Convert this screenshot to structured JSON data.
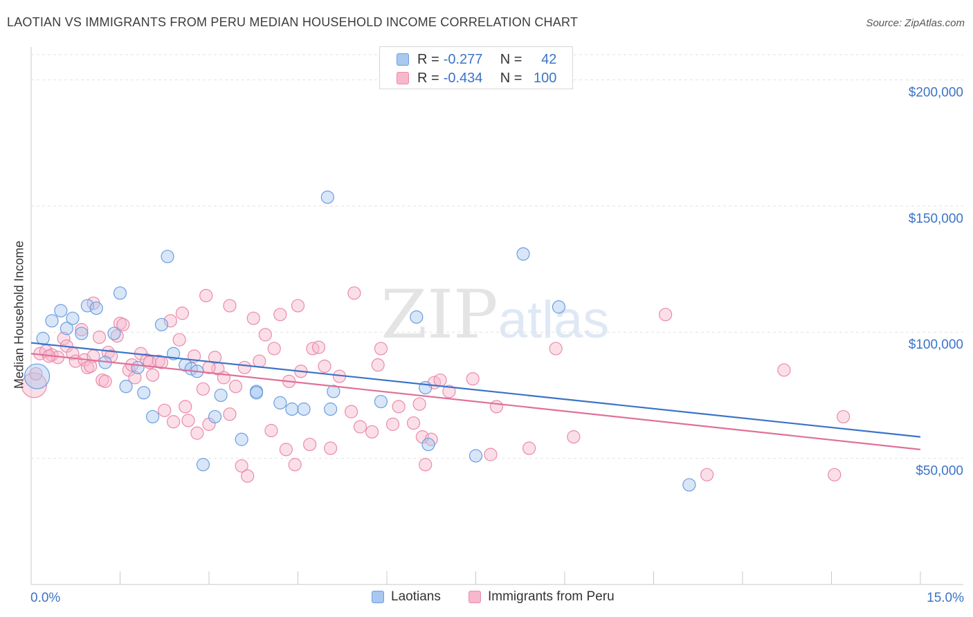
{
  "title": "LAOTIAN VS IMMIGRANTS FROM PERU MEDIAN HOUSEHOLD INCOME CORRELATION CHART",
  "source": "Source: ZipAtlas.com",
  "watermark": {
    "zip": "ZIP",
    "atlas": "atlas"
  },
  "legend": {
    "rows": [
      {
        "r_label": "R =",
        "r_value": "-0.277",
        "n_label": "N =",
        "n_value": "42",
        "color": "#a8c8f0",
        "stroke": "#6a9ee0"
      },
      {
        "r_label": "R =",
        "r_value": "-0.434",
        "n_label": "N =",
        "n_value": "100",
        "color": "#f7b8cc",
        "stroke": "#ea8aa8"
      }
    ]
  },
  "bottom_legend": [
    {
      "label": "Laotians",
      "color": "#a8c8f0",
      "stroke": "#6a9ee0"
    },
    {
      "label": "Immigrants from Peru",
      "color": "#f7b8cc",
      "stroke": "#ea8aa8"
    }
  ],
  "chart_data": {
    "type": "scatter",
    "title": "LAOTIAN VS IMMIGRANTS FROM PERU MEDIAN HOUSEHOLD INCOME CORRELATION CHART",
    "xlabel": "",
    "ylabel": "Median Household Income",
    "xlim": [
      0,
      15
    ],
    "ylim": [
      0,
      210000
    ],
    "x_tick_labels": [
      "0.0%",
      "15.0%"
    ],
    "y_ticks": [
      50000,
      100000,
      150000,
      200000
    ],
    "y_tick_labels": [
      "$50,000",
      "$100,000",
      "$150,000",
      "$200,000"
    ],
    "grid": true,
    "legend_position": "top-center",
    "series": [
      {
        "name": "Laotians",
        "color": "#6a9ee0",
        "fill": "#a8c8f0",
        "line_color": "#3b73c7",
        "trend": {
          "x": [
            0,
            15
          ],
          "y": [
            95800,
            58500
          ]
        },
        "points": [
          [
            0.1,
            82500
          ],
          [
            0.2,
            97500
          ],
          [
            0.35,
            104500
          ],
          [
            0.5,
            108500
          ],
          [
            0.6,
            101500
          ],
          [
            0.7,
            105500
          ],
          [
            0.85,
            99500
          ],
          [
            0.95,
            110500
          ],
          [
            1.1,
            109500
          ],
          [
            1.25,
            88000
          ],
          [
            1.4,
            99500
          ],
          [
            1.5,
            115500
          ],
          [
            1.6,
            78500
          ],
          [
            1.8,
            86000
          ],
          [
            1.9,
            76000
          ],
          [
            2.05,
            66500
          ],
          [
            2.2,
            103000
          ],
          [
            2.3,
            130000
          ],
          [
            2.4,
            91500
          ],
          [
            2.6,
            87000
          ],
          [
            2.7,
            85500
          ],
          [
            2.8,
            84500
          ],
          [
            2.9,
            47500
          ],
          [
            3.1,
            66500
          ],
          [
            3.2,
            75000
          ],
          [
            3.55,
            57500
          ],
          [
            3.8,
            76500
          ],
          [
            3.8,
            76000
          ],
          [
            4.2,
            72000
          ],
          [
            4.4,
            69500
          ],
          [
            4.6,
            69500
          ],
          [
            5.0,
            153500
          ],
          [
            5.05,
            69500
          ],
          [
            5.1,
            76500
          ],
          [
            5.9,
            72500
          ],
          [
            6.5,
            106000
          ],
          [
            6.65,
            78000
          ],
          [
            6.7,
            55500
          ],
          [
            7.5,
            51000
          ],
          [
            8.3,
            131000
          ],
          [
            8.9,
            110000
          ],
          [
            11.1,
            39500
          ]
        ]
      },
      {
        "name": "Immigrants from Peru",
        "color": "#ea8aa8",
        "fill": "#f7b8cc",
        "line_color": "#e0709a",
        "trend": {
          "x": [
            0,
            15
          ],
          "y": [
            91500,
            53500
          ]
        },
        "points": [
          [
            0.05,
            79000
          ],
          [
            0.15,
            91500
          ],
          [
            0.25,
            92500
          ],
          [
            0.35,
            91000
          ],
          [
            0.45,
            90000
          ],
          [
            0.55,
            97500
          ],
          [
            0.6,
            94500
          ],
          [
            0.7,
            91500
          ],
          [
            0.75,
            88500
          ],
          [
            0.85,
            101000
          ],
          [
            0.9,
            89000
          ],
          [
            0.95,
            86000
          ],
          [
            1.05,
            111500
          ],
          [
            1.05,
            90500
          ],
          [
            1.15,
            98000
          ],
          [
            1.2,
            81000
          ],
          [
            1.25,
            80500
          ],
          [
            1.3,
            92000
          ],
          [
            1.35,
            90500
          ],
          [
            1.45,
            98500
          ],
          [
            1.5,
            103500
          ],
          [
            1.55,
            103000
          ],
          [
            1.65,
            85000
          ],
          [
            1.7,
            87000
          ],
          [
            1.75,
            82000
          ],
          [
            1.85,
            91500
          ],
          [
            1.95,
            89000
          ],
          [
            2.0,
            88000
          ],
          [
            2.05,
            83000
          ],
          [
            2.15,
            88500
          ],
          [
            2.25,
            69000
          ],
          [
            2.35,
            104500
          ],
          [
            2.4,
            64500
          ],
          [
            2.5,
            97000
          ],
          [
            2.55,
            107500
          ],
          [
            2.6,
            70500
          ],
          [
            2.65,
            65000
          ],
          [
            2.75,
            90500
          ],
          [
            2.8,
            60000
          ],
          [
            2.9,
            77500
          ],
          [
            2.95,
            114500
          ],
          [
            3.0,
            63500
          ],
          [
            3.1,
            90000
          ],
          [
            3.15,
            85500
          ],
          [
            3.25,
            82000
          ],
          [
            3.35,
            67500
          ],
          [
            3.35,
            110500
          ],
          [
            3.45,
            78500
          ],
          [
            3.55,
            47000
          ],
          [
            3.6,
            86000
          ],
          [
            3.65,
            43000
          ],
          [
            3.75,
            105500
          ],
          [
            3.85,
            88500
          ],
          [
            3.95,
            99000
          ],
          [
            4.05,
            61000
          ],
          [
            4.1,
            93500
          ],
          [
            4.2,
            107000
          ],
          [
            4.3,
            53500
          ],
          [
            4.35,
            80500
          ],
          [
            4.45,
            47500
          ],
          [
            4.5,
            110500
          ],
          [
            4.55,
            84500
          ],
          [
            4.7,
            55500
          ],
          [
            4.75,
            93500
          ],
          [
            4.85,
            94000
          ],
          [
            4.95,
            86500
          ],
          [
            5.05,
            54000
          ],
          [
            5.2,
            82500
          ],
          [
            5.4,
            68500
          ],
          [
            5.45,
            115500
          ],
          [
            5.55,
            62500
          ],
          [
            5.75,
            60500
          ],
          [
            5.85,
            87000
          ],
          [
            5.9,
            93500
          ],
          [
            6.1,
            63500
          ],
          [
            6.2,
            70500
          ],
          [
            6.45,
            64000
          ],
          [
            6.55,
            71500
          ],
          [
            6.6,
            58500
          ],
          [
            6.65,
            47500
          ],
          [
            6.75,
            57500
          ],
          [
            6.8,
            80000
          ],
          [
            6.9,
            81000
          ],
          [
            7.05,
            76500
          ],
          [
            7.45,
            81500
          ],
          [
            7.75,
            51500
          ],
          [
            7.85,
            70500
          ],
          [
            8.4,
            54000
          ],
          [
            8.85,
            93500
          ],
          [
            9.15,
            58500
          ],
          [
            10.7,
            107000
          ],
          [
            11.4,
            43500
          ],
          [
            12.7,
            85000
          ],
          [
            13.55,
            43500
          ],
          [
            13.7,
            66500
          ],
          [
            0.08,
            83500
          ],
          [
            0.3,
            90500
          ],
          [
            1.0,
            86500
          ],
          [
            2.2,
            88000
          ],
          [
            3.0,
            86000
          ]
        ]
      }
    ]
  }
}
